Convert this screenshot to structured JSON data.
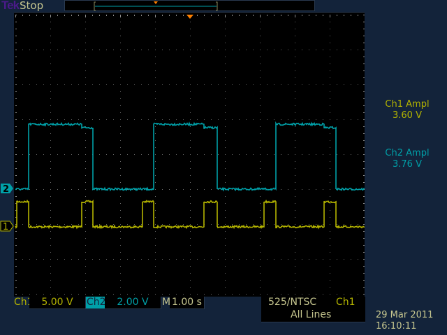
{
  "header": {
    "brand": "Tek",
    "acquisition_state": "Stop"
  },
  "measurements": [
    {
      "label": "Ch1 Ampl",
      "value": "3.60 V",
      "color": "#b4b400"
    },
    {
      "label": "Ch2 Ampl",
      "value": "3.76 V",
      "color": "#00a0a8"
    }
  ],
  "footer": {
    "ch1_label": "Ch1",
    "ch1_scale": "5.00 V",
    "ch2_label": "Ch2",
    "ch2_scale": "2.00 V",
    "timebase_label": "M",
    "timebase_scale": "1.00 s",
    "trigger_source_line1": "525/NTSC",
    "trigger_channel": "Ch1",
    "trigger_lines": "All Lines",
    "date": "29 Mar 2011",
    "time": "16:10:11"
  },
  "colors": {
    "ch1": "#b4b400",
    "ch2": "#00a0a8",
    "trigger": "#ff8000",
    "background": "#13233a"
  },
  "chart_data": {
    "type": "line",
    "xlabel": "",
    "ylabel": "",
    "x_unit": "s",
    "x_range": [
      0,
      10
    ],
    "x_divisions": 10,
    "y_divisions": 8,
    "grid": true,
    "series": [
      {
        "name": "1",
        "volts_per_div": 5.0,
        "ground_div_below_center": 2.08,
        "color": "#b4b400",
        "points": [
          [
            0,
            0
          ],
          [
            0.04,
            0
          ],
          [
            0.04,
            3.6
          ],
          [
            0.38,
            3.6
          ],
          [
            0.38,
            0
          ],
          [
            1.9,
            0
          ],
          [
            1.9,
            3.6
          ],
          [
            2.22,
            3.6
          ],
          [
            2.22,
            0
          ],
          [
            3.64,
            0
          ],
          [
            3.64,
            3.6
          ],
          [
            3.96,
            3.6
          ],
          [
            3.96,
            0
          ],
          [
            5.4,
            0
          ],
          [
            5.4,
            3.6
          ],
          [
            5.78,
            3.6
          ],
          [
            5.78,
            0
          ],
          [
            7.12,
            0
          ],
          [
            7.12,
            3.6
          ],
          [
            7.46,
            3.6
          ],
          [
            7.46,
            0
          ],
          [
            8.84,
            0
          ],
          [
            8.84,
            3.6
          ],
          [
            9.18,
            3.6
          ],
          [
            9.18,
            0
          ],
          [
            10,
            0
          ]
        ]
      },
      {
        "name": "2",
        "volts_per_div": 2.0,
        "ground_div_below_center": 1.0,
        "color": "#00a0a8",
        "points": [
          [
            0,
            0
          ],
          [
            0.38,
            0
          ],
          [
            0.38,
            3.72
          ],
          [
            1.9,
            3.72
          ],
          [
            1.9,
            3.52
          ],
          [
            2.22,
            3.52
          ],
          [
            2.22,
            0
          ],
          [
            3.96,
            0
          ],
          [
            3.96,
            3.72
          ],
          [
            5.4,
            3.72
          ],
          [
            5.4,
            3.52
          ],
          [
            5.78,
            3.52
          ],
          [
            5.78,
            0
          ],
          [
            7.46,
            0
          ],
          [
            7.46,
            3.72
          ],
          [
            8.84,
            3.72
          ],
          [
            8.84,
            3.52
          ],
          [
            9.18,
            3.52
          ],
          [
            9.18,
            0
          ],
          [
            10,
            0
          ]
        ]
      }
    ]
  }
}
